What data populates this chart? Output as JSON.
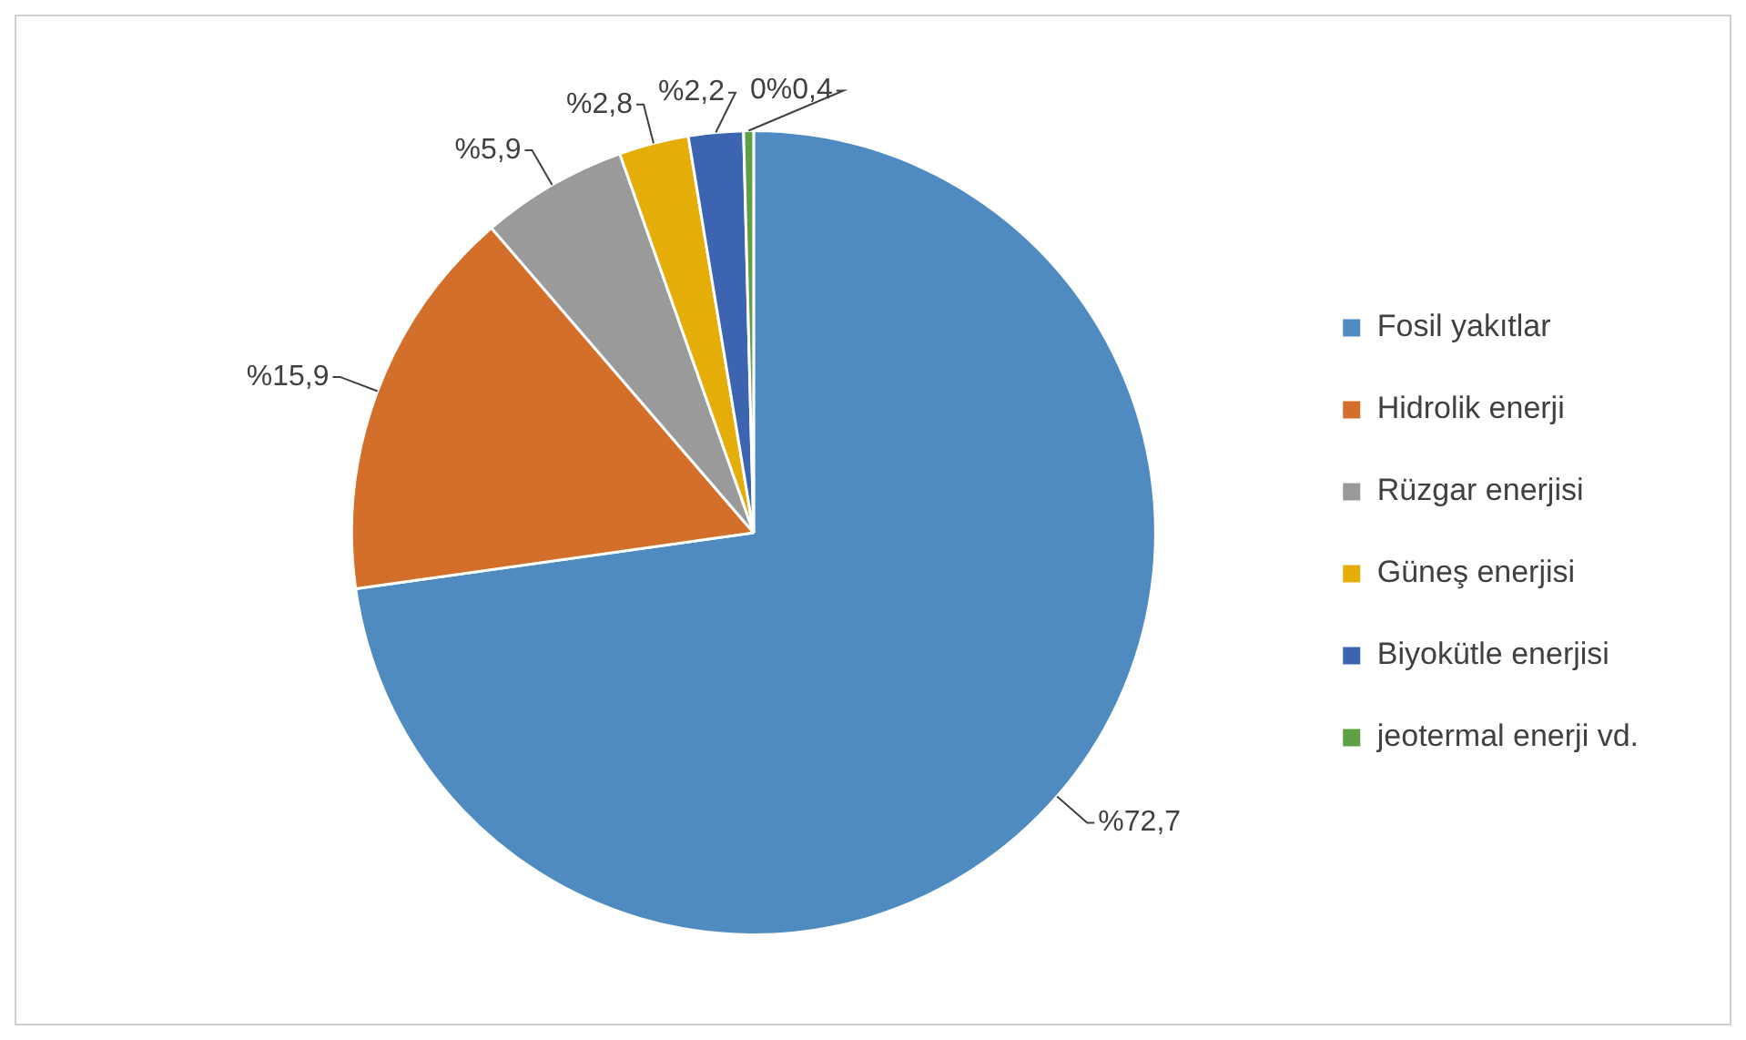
{
  "chart_data": {
    "type": "pie",
    "categories": [
      "Fosil yakıtlar",
      "Hidrolik enerji",
      "Rüzgar enerjisi",
      "Güneş enerjisi",
      "Biyokütle enerjisi",
      "jeotermal enerji vd."
    ],
    "values": [
      72.7,
      15.9,
      5.9,
      2.8,
      2.2,
      0.4
    ],
    "colors": [
      "#4f8bc0",
      "#d46f2b",
      "#9a9a9a",
      "#e5ad07",
      "#3d64b0",
      "#5fa044"
    ],
    "value_labels": [
      "%72,7",
      "%15,9",
      "%5,9",
      "%2,8",
      "%2,2",
      "0%0,4"
    ],
    "legend": "right"
  }
}
